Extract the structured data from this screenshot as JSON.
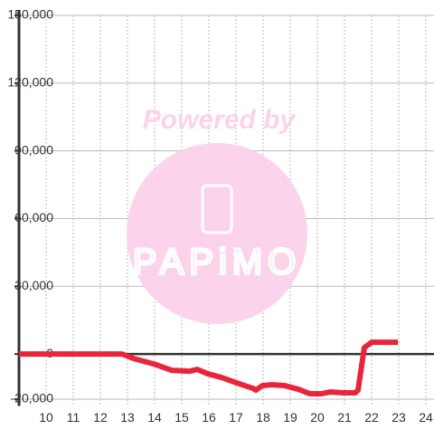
{
  "chart_data": {
    "type": "line",
    "x": [
      9,
      12.8,
      13.23,
      13.97,
      14.63,
      15.3,
      15.57,
      15.97,
      16.47,
      17.03,
      17.63,
      17.73,
      17.97,
      18.3,
      18.8,
      19.3,
      19.73,
      20.13,
      20.47,
      20.97,
      21.4,
      21.5,
      21.73,
      22.0,
      22.97
    ],
    "series": [
      {
        "color": "#e8253a",
        "values": [
          0,
          0,
          -2000,
          -4400,
          -7200,
          -7600,
          -6800,
          -8800,
          -10400,
          -12800,
          -15200,
          -16000,
          -14000,
          -13600,
          -14000,
          -15600,
          -17600,
          -17600,
          -16800,
          -17200,
          -17200,
          -16000,
          2800,
          5200,
          5200
        ]
      }
    ],
    "xlim": [
      9,
      24.3
    ],
    "ylim": [
      -23000,
      150000
    ],
    "xticks": [
      10,
      11,
      12,
      13,
      14,
      15,
      16,
      17,
      18,
      19,
      20,
      21,
      22,
      23,
      24
    ],
    "yticks": [
      {
        "value": -20000,
        "label": "-20,000"
      },
      {
        "value": 0,
        "label": "0"
      },
      {
        "value": 30000,
        "label": "30,000"
      },
      {
        "value": 60000,
        "label": "60,000"
      },
      {
        "value": 90000,
        "label": "90,000"
      },
      {
        "value": 120000,
        "label": "120,000"
      },
      {
        "value": 150000,
        "label": "150,000"
      }
    ],
    "grid": true,
    "watermark": {
      "top": "Powered by",
      "bottom": "PAPiMO"
    }
  }
}
